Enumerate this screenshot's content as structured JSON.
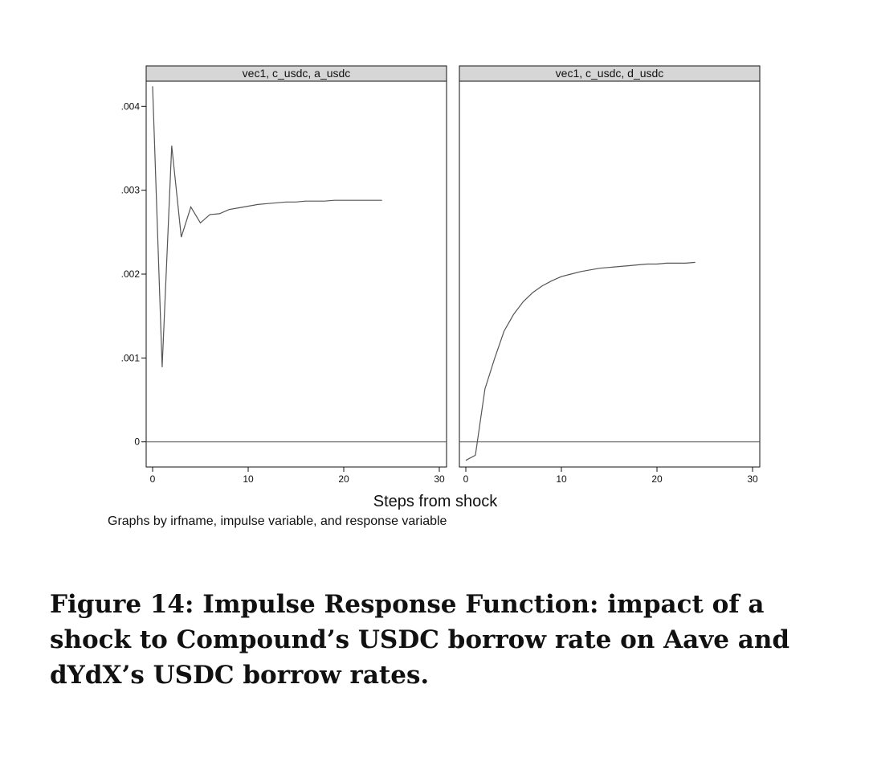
{
  "chart_data": {
    "type": "line",
    "xlabel": "Steps from shock",
    "note": "Graphs by irfname, impulse variable, and response variable",
    "xlim": [
      0,
      30
    ],
    "xticks": [
      "0",
      "10",
      "20",
      "30"
    ],
    "ylim": [
      -0.0003,
      0.0043
    ],
    "yticks": [
      {
        "value": 0.004,
        "label": ".004"
      },
      {
        "value": 0.003,
        "label": ".003"
      },
      {
        "value": 0.002,
        "label": ".002"
      },
      {
        "value": 0.001,
        "label": ".001"
      },
      {
        "value": 0,
        "label": "0"
      }
    ],
    "grid": false,
    "reference_line": 0,
    "panels": [
      {
        "title": "vec1, c_usdc, a_usdc",
        "x": [
          0,
          1,
          2,
          3,
          4,
          5,
          6,
          7,
          8,
          9,
          10,
          11,
          12,
          13,
          14,
          15,
          16,
          17,
          18,
          19,
          20,
          21,
          22,
          23,
          24
        ],
        "y": [
          0.00424,
          0.00089,
          0.00353,
          0.00244,
          0.0028,
          0.00261,
          0.00271,
          0.00272,
          0.00277,
          0.00279,
          0.00281,
          0.00283,
          0.00284,
          0.00285,
          0.00286,
          0.00286,
          0.00287,
          0.00287,
          0.00287,
          0.00288,
          0.00288,
          0.00288,
          0.00288,
          0.00288,
          0.00288
        ]
      },
      {
        "title": "vec1, c_usdc, d_usdc",
        "x": [
          0,
          1,
          2,
          3,
          4,
          5,
          6,
          7,
          8,
          9,
          10,
          11,
          12,
          13,
          14,
          15,
          16,
          17,
          18,
          19,
          20,
          21,
          22,
          23,
          24
        ],
        "y": [
          -0.00022,
          -0.00016,
          0.00063,
          0.00099,
          0.00132,
          0.00152,
          0.00167,
          0.00178,
          0.00186,
          0.00192,
          0.00197,
          0.002,
          0.00203,
          0.00205,
          0.00207,
          0.00208,
          0.00209,
          0.0021,
          0.00211,
          0.00212,
          0.00212,
          0.00213,
          0.00213,
          0.00213,
          0.00214
        ]
      }
    ]
  },
  "caption": "Figure 14: Impulse Response Function: impact of a shock to Compound’s USDC borrow rate on Aave and dYdX’s USDC borrow rates.",
  "colors": {
    "line": "#555555",
    "panel_header": "#d6d6d6",
    "axis": "#111111"
  }
}
